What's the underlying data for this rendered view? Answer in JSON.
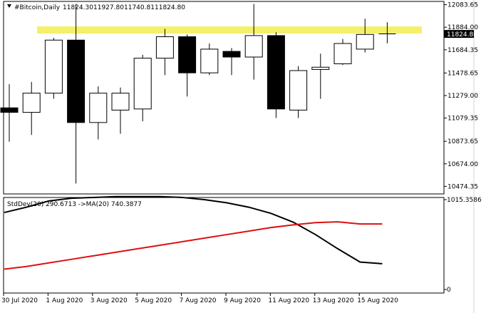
{
  "main_header": {
    "symbol": "#Bitcoin,Daily",
    "open": "11824.30",
    "high": "11927.80",
    "low": "11740.81",
    "close": "11824.80"
  },
  "indicator_header": {
    "text": "StdDev(20) 290.6713  ->MA(20) 740.3877"
  },
  "current_price_label": "11824.80",
  "chart_data": [
    {
      "type": "candlestick",
      "title": "#Bitcoin,Daily",
      "ylim": [
        10420,
        12100
      ],
      "y_ticks": [
        "12083.65",
        "11884.00",
        "11684.35",
        "11478.65",
        "11279.00",
        "11079.35",
        "10873.65",
        "10674.00",
        "10474.35"
      ],
      "x_ticks": [
        "30 Jul 2020",
        "1 Aug 2020",
        "3 Aug 2020",
        "5 Aug 2020",
        "7 Aug 2020",
        "9 Aug 2020",
        "11 Aug 2020",
        "13 Aug 2020",
        "15 Aug 2020"
      ],
      "colors": {
        "bull": "#ffffff",
        "bear": "#000000",
        "outline": "#000000",
        "highlight": "#f5f06a"
      },
      "resistance_level": 11860,
      "candles": [
        {
          "o": 11170,
          "h": 11380,
          "l": 10870,
          "c": 11130
        },
        {
          "o": 11130,
          "h": 11400,
          "l": 10930,
          "c": 11300
        },
        {
          "o": 11300,
          "h": 11790,
          "l": 11250,
          "c": 11770
        },
        {
          "o": 11770,
          "h": 12090,
          "l": 10500,
          "c": 11040
        },
        {
          "o": 11040,
          "h": 11360,
          "l": 10890,
          "c": 11300
        },
        {
          "o": 11150,
          "h": 11350,
          "l": 10940,
          "c": 11300
        },
        {
          "o": 11160,
          "h": 11640,
          "l": 11050,
          "c": 11610
        },
        {
          "o": 11610,
          "h": 11870,
          "l": 11460,
          "c": 11800
        },
        {
          "o": 11800,
          "h": 11820,
          "l": 11270,
          "c": 11480
        },
        {
          "o": 11480,
          "h": 11740,
          "l": 11460,
          "c": 11690
        },
        {
          "o": 11670,
          "h": 11700,
          "l": 11460,
          "c": 11620
        },
        {
          "o": 11620,
          "h": 12090,
          "l": 11420,
          "c": 11810
        },
        {
          "o": 11810,
          "h": 11840,
          "l": 11080,
          "c": 11160
        },
        {
          "o": 11150,
          "h": 11540,
          "l": 11080,
          "c": 11500
        },
        {
          "o": 11510,
          "h": 11650,
          "l": 11250,
          "c": 11530
        },
        {
          "o": 11560,
          "h": 11780,
          "l": 11550,
          "c": 11740
        },
        {
          "o": 11690,
          "h": 11960,
          "l": 11660,
          "c": 11820
        },
        {
          "o": 11824,
          "h": 11928,
          "l": 11741,
          "c": 11825
        }
      ]
    },
    {
      "type": "line",
      "title": "StdDev(20) 290.6713  ->MA(20) 740.3877",
      "ylim": [
        0,
        1015.3586
      ],
      "y_ticks": [
        "1015.3586",
        "0"
      ],
      "series": [
        {
          "name": "StdDev(20)",
          "color": "#000000",
          "values": [
            870,
            930,
            1000,
            1030,
            1040,
            1050,
            1050,
            1050,
            1040,
            1015,
            980,
            930,
            860,
            760,
            620,
            460,
            310,
            291
          ]
        },
        {
          "name": "MA(20)",
          "color": "#dd1111",
          "values": [
            230,
            260,
            300,
            340,
            380,
            420,
            460,
            500,
            540,
            580,
            620,
            660,
            700,
            730,
            755,
            765,
            740,
            740
          ]
        }
      ]
    }
  ]
}
